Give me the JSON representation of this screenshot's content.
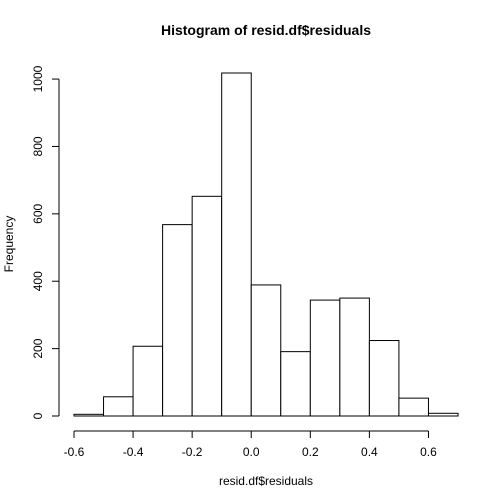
{
  "chart_data": {
    "type": "bar",
    "title": "Histogram of resid.df$residuals",
    "xlabel": "resid.df$residuals",
    "ylabel": "Frequency",
    "bin_edges": [
      -0.6,
      -0.5,
      -0.4,
      -0.3,
      -0.2,
      -0.1,
      0.0,
      0.1,
      0.2,
      0.3,
      0.4,
      0.5,
      0.6,
      0.7
    ],
    "values": [
      5,
      57,
      207,
      568,
      652,
      1018,
      389,
      191,
      344,
      350,
      224,
      53,
      8
    ],
    "xlim": [
      -0.6,
      0.7
    ],
    "ylim": [
      0,
      1018
    ],
    "x_ticks": [
      -0.6,
      -0.4,
      -0.2,
      0.0,
      0.2,
      0.4,
      0.6
    ],
    "x_tick_labels": [
      "-0.6",
      "-0.4",
      "-0.2",
      "0.0",
      "0.2",
      "0.4",
      "0.6"
    ],
    "y_ticks": [
      0,
      200,
      400,
      600,
      800,
      1000
    ],
    "y_tick_labels": [
      "0",
      "200",
      "400",
      "600",
      "800",
      "1000"
    ],
    "grid": false,
    "bar_fill": "#ffffff",
    "bar_stroke": "#000000"
  }
}
